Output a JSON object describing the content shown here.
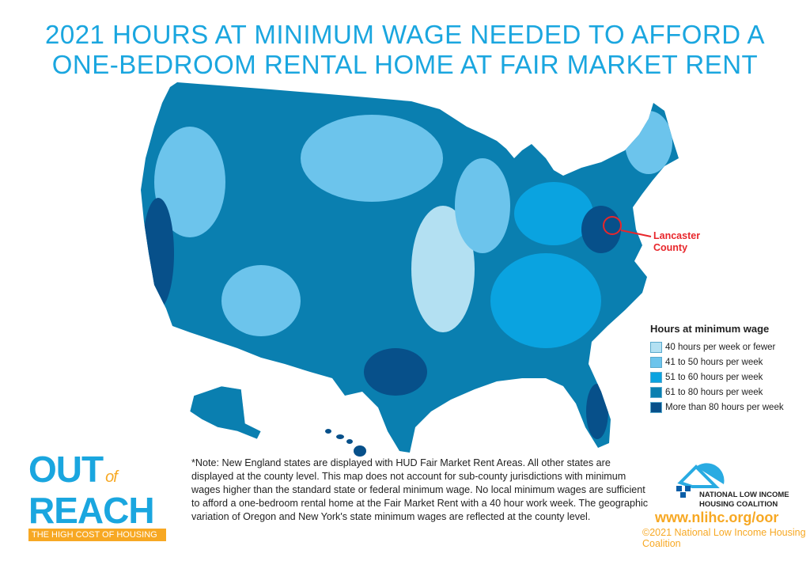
{
  "title": {
    "line1": "2021 HOURS AT MINIMUM WAGE NEEDED TO AFFORD A",
    "line2": "ONE-BEDROOM RENTAL HOME AT FAIR MARKET RENT"
  },
  "annotation": {
    "line1": "Lancaster",
    "line2": "County",
    "color": "#e8262b"
  },
  "legend": {
    "title": "Hours at minimum wage",
    "items": [
      {
        "label": "40 hours per week or fewer",
        "color": "#b3e0f2"
      },
      {
        "label": "41 to 50 hours per week",
        "color": "#6cc4ec"
      },
      {
        "label": "51 to 60 hours per week",
        "color": "#0aa3e0"
      },
      {
        "label": "61 to 80 hours per week",
        "color": "#0a7fb0"
      },
      {
        "label": "More than 80 hours per week",
        "color": "#07508a"
      }
    ]
  },
  "note": "*Note: New England states are displayed with HUD Fair Market Rent Areas. All other states are displayed at the county level. This map does not account for sub-county jurisdictions with minimum wages higher than the standard state or federal minimum wage. No local minimum wages are sufficient to afford a one-bedroom rental home at the Fair Market Rent with a 40 hour work week. The geographic variation of Oregon and New York's state minimum wages are reflected at the county level.",
  "logo_oor": {
    "word1": "OUT",
    "word2": "of",
    "word3": "REACH",
    "tagline": "THE HIGH COST OF HOUSING"
  },
  "nlihc": {
    "name_line1": "NATIONAL LOW INCOME",
    "name_line2": "HOUSING COALITION",
    "url": "www.nlihc.org/oor",
    "copyright": "©2021 National Low Income Housing Coalition"
  },
  "colors": {
    "title": "#1aa6df",
    "accent_orange": "#f7a823"
  }
}
